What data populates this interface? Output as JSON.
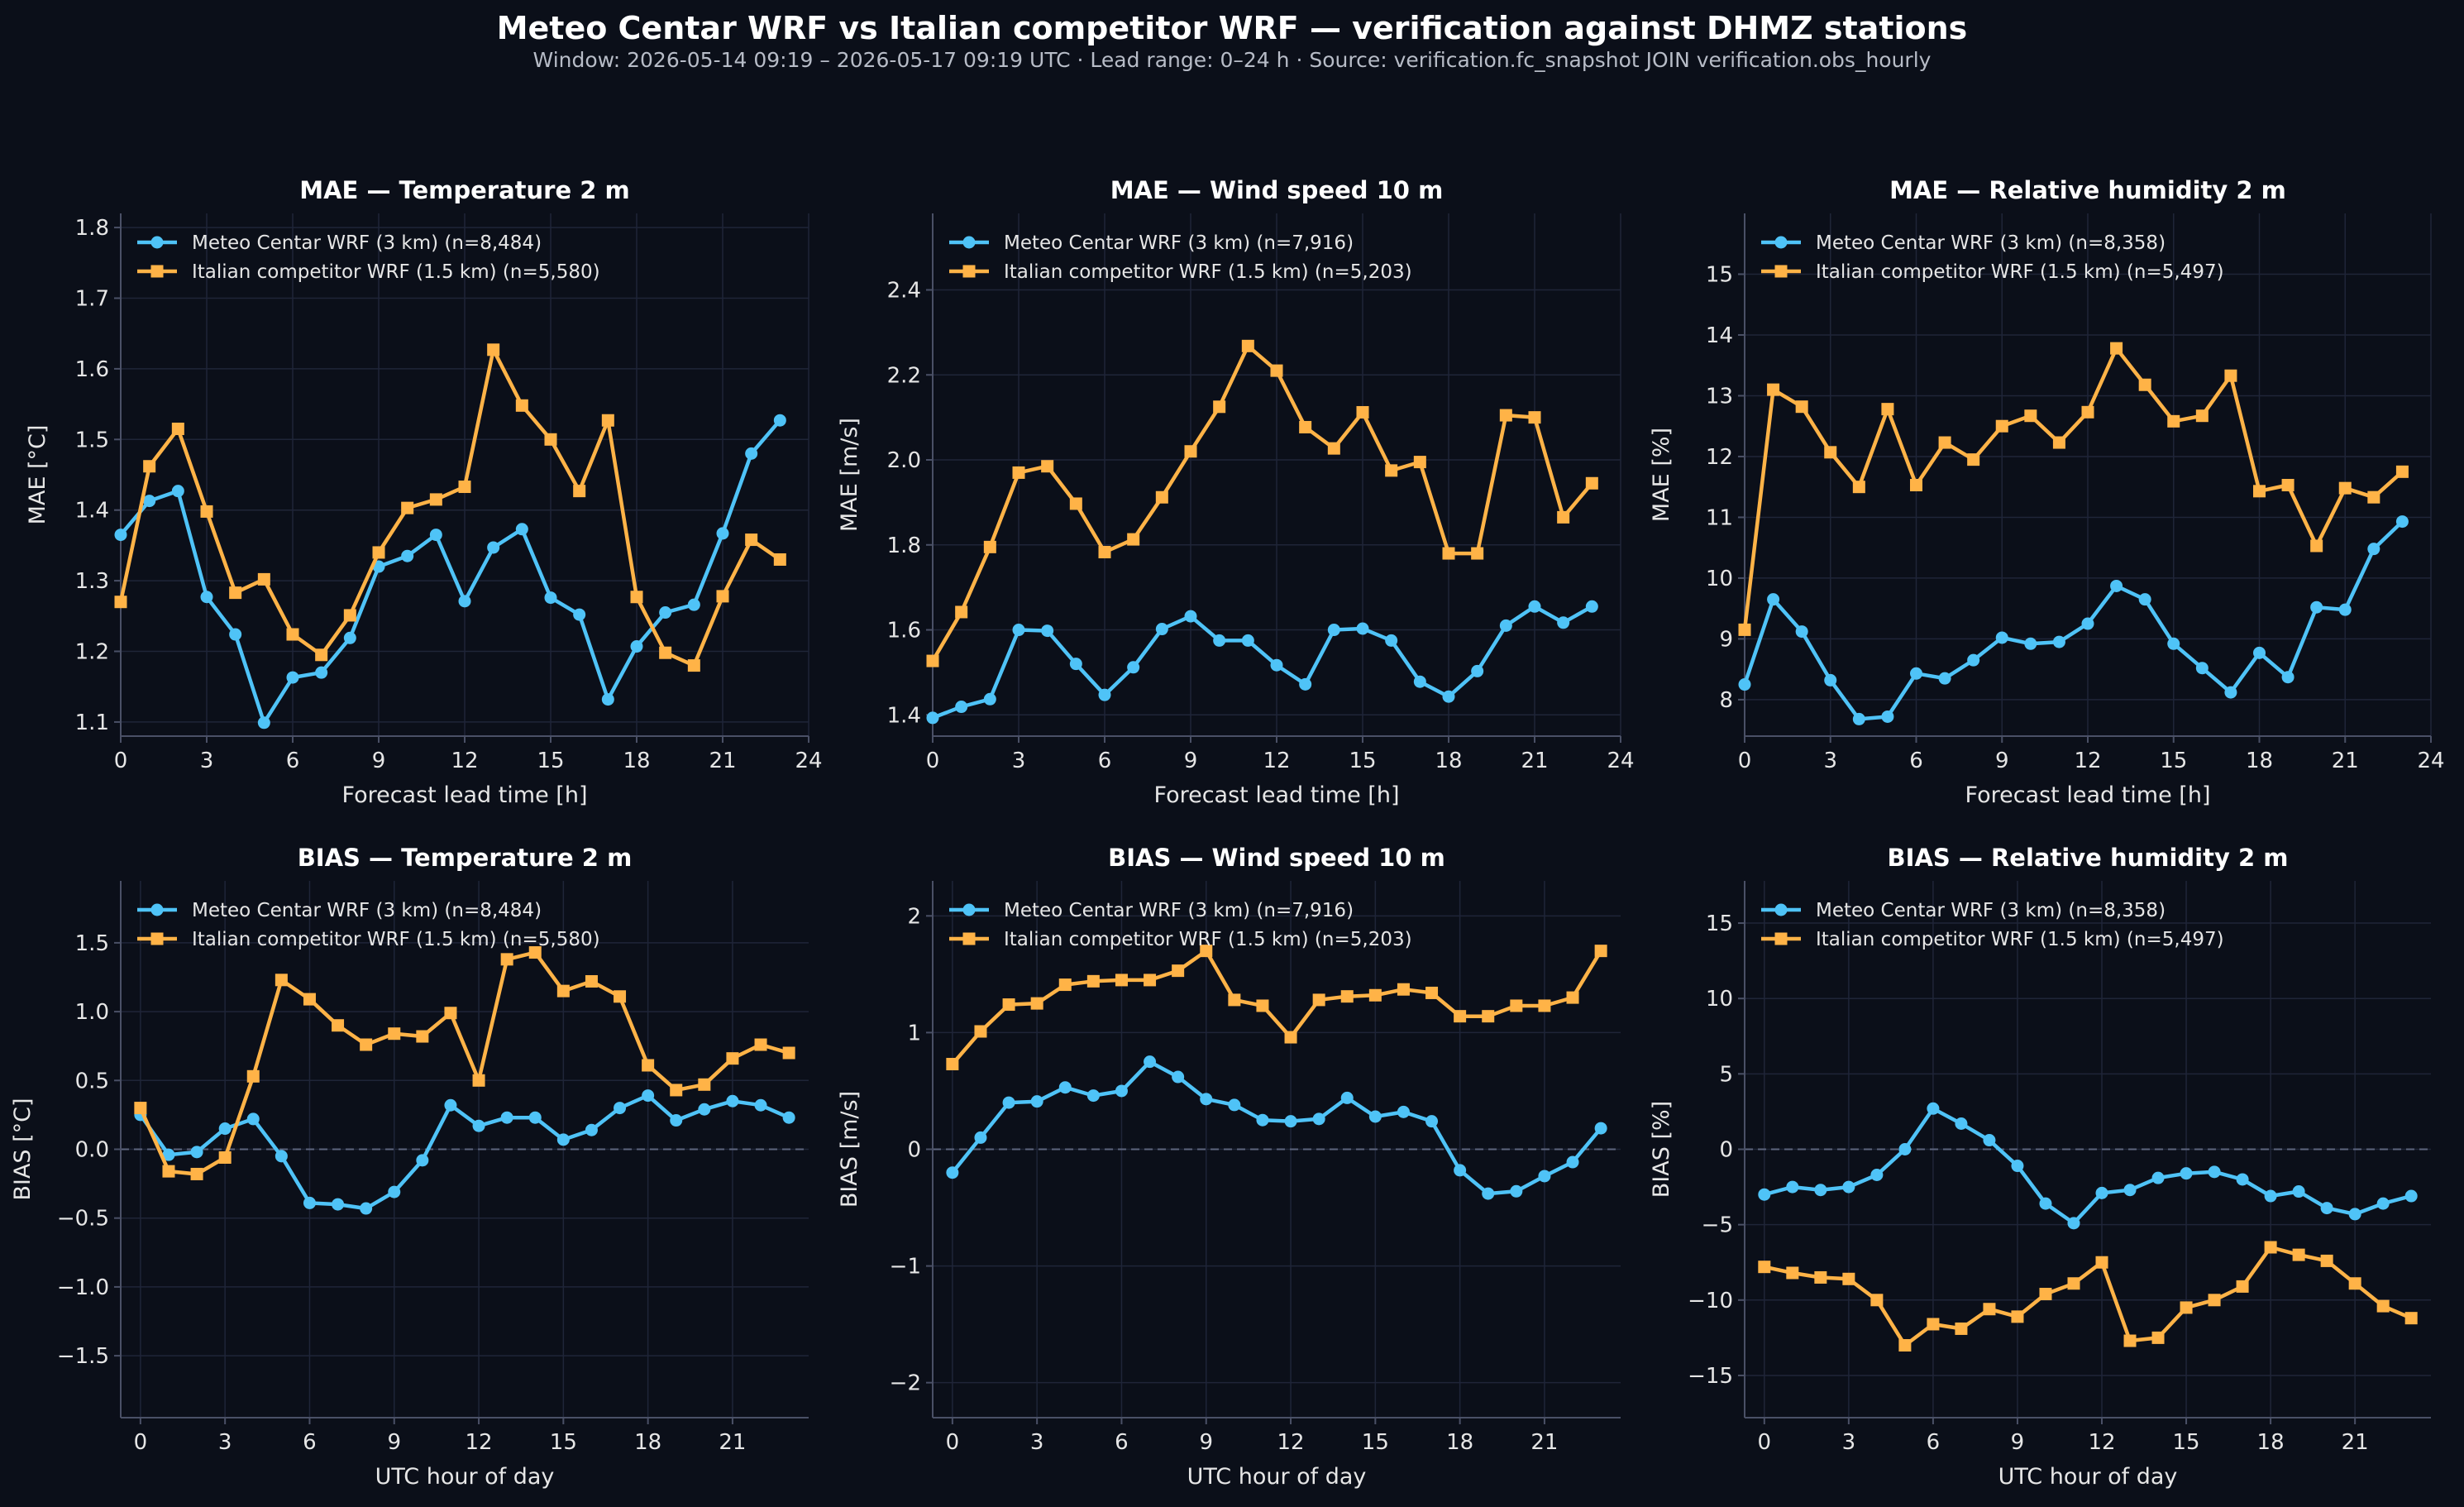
{
  "figure": {
    "title": "Meteo Centar WRF vs Italian competitor WRF — verification against DHMZ stations",
    "subtitle": "Window: 2026-05-14 09:19 – 2026-05-17 09:19 UTC  ·  Lead range: 0–24 h  ·  Source: verification.fc_snapshot JOIN verification.obs_hourly"
  },
  "colors": {
    "background": "#0b0f19",
    "grid": "#1f2538",
    "axis": "#4a5066",
    "meteo": "#4fc3f7",
    "italian": "#ffb347"
  },
  "chart_data": [
    {
      "type": "line",
      "title": "MAE — Temperature 2 m",
      "xlabel": "Forecast lead time [h]",
      "ylabel": "MAE [°C]",
      "xlim": [
        0,
        24
      ],
      "ylim": [
        1.08,
        1.82
      ],
      "xticks": [
        0,
        3,
        6,
        9,
        12,
        15,
        18,
        21,
        24
      ],
      "xtick_labels": [
        "0",
        "3",
        "6",
        "9",
        "12",
        "15",
        "18",
        "21",
        "24"
      ],
      "yticks": [
        1.1,
        1.2,
        1.3,
        1.4,
        1.5,
        1.6,
        1.7,
        1.8
      ],
      "ytick_labels": [
        "1.1",
        "1.2",
        "1.3",
        "1.4",
        "1.5",
        "1.6",
        "1.7",
        "1.8"
      ],
      "grid": true,
      "legend": "upper-left",
      "x": [
        0,
        1,
        2,
        3,
        4,
        5,
        6,
        7,
        8,
        9,
        10,
        11,
        12,
        13,
        14,
        15,
        16,
        17,
        18,
        19,
        20,
        21,
        22,
        23
      ],
      "series": [
        {
          "name": "Meteo Centar WRF (3 km) (n=8,484)",
          "marker": "circle",
          "color": "#4fc3f7",
          "values": [
            1.365,
            1.413,
            1.427,
            1.277,
            1.224,
            1.099,
            1.163,
            1.17,
            1.219,
            1.32,
            1.335,
            1.365,
            1.271,
            1.347,
            1.373,
            1.276,
            1.252,
            1.132,
            1.207,
            1.255,
            1.266,
            1.367,
            1.48,
            1.527
          ]
        },
        {
          "name": "Italian competitor WRF (1.5 km) (n=5,580)",
          "marker": "square",
          "color": "#ffb347",
          "values": [
            1.27,
            1.462,
            1.515,
            1.398,
            1.283,
            1.302,
            1.224,
            1.195,
            1.251,
            1.34,
            1.403,
            1.415,
            1.433,
            1.627,
            1.548,
            1.5,
            1.427,
            1.527,
            1.277,
            1.198,
            1.18,
            1.278,
            1.358,
            1.33
          ]
        }
      ]
    },
    {
      "type": "line",
      "title": "MAE — Wind speed 10 m",
      "xlabel": "Forecast lead time [h]",
      "ylabel": "MAE [m/s]",
      "xlim": [
        0,
        24
      ],
      "ylim": [
        1.35,
        2.58
      ],
      "xticks": [
        0,
        3,
        6,
        9,
        12,
        15,
        18,
        21,
        24
      ],
      "xtick_labels": [
        "0",
        "3",
        "6",
        "9",
        "12",
        "15",
        "18",
        "21",
        "24"
      ],
      "yticks": [
        1.4,
        1.6,
        1.8,
        2.0,
        2.2,
        2.4
      ],
      "ytick_labels": [
        "1.4",
        "1.6",
        "1.8",
        "2.0",
        "2.2",
        "2.4"
      ],
      "grid": true,
      "legend": "upper-left",
      "x": [
        0,
        1,
        2,
        3,
        4,
        5,
        6,
        7,
        8,
        9,
        10,
        11,
        12,
        13,
        14,
        15,
        16,
        17,
        18,
        19,
        20,
        21,
        22,
        23
      ],
      "series": [
        {
          "name": "Meteo Centar WRF (3 km) (n=7,916)",
          "marker": "circle",
          "color": "#4fc3f7",
          "values": [
            1.393,
            1.419,
            1.437,
            1.6,
            1.598,
            1.52,
            1.447,
            1.512,
            1.602,
            1.632,
            1.575,
            1.575,
            1.517,
            1.472,
            1.6,
            1.603,
            1.575,
            1.478,
            1.443,
            1.503,
            1.61,
            1.655,
            1.617,
            1.655
          ]
        },
        {
          "name": "Italian competitor WRF (1.5 km) (n=5,203)",
          "marker": "square",
          "color": "#ffb347",
          "values": [
            1.527,
            1.642,
            1.795,
            1.97,
            1.985,
            1.897,
            1.783,
            1.813,
            1.912,
            2.02,
            2.125,
            2.268,
            2.21,
            2.077,
            2.027,
            2.112,
            1.975,
            1.995,
            1.78,
            1.78,
            2.105,
            2.1,
            1.865,
            1.945
          ]
        }
      ]
    },
    {
      "type": "line",
      "title": "MAE — Relative humidity 2 m",
      "xlabel": "Forecast lead time [h]",
      "ylabel": "MAE [%]",
      "xlim": [
        0,
        24
      ],
      "ylim": [
        7.4,
        16.0
      ],
      "xticks": [
        0,
        3,
        6,
        9,
        12,
        15,
        18,
        21,
        24
      ],
      "xtick_labels": [
        "0",
        "3",
        "6",
        "9",
        "12",
        "15",
        "18",
        "21",
        "24"
      ],
      "yticks": [
        8,
        9,
        10,
        11,
        12,
        13,
        14,
        15
      ],
      "ytick_labels": [
        "8",
        "9",
        "10",
        "11",
        "12",
        "13",
        "14",
        "15"
      ],
      "grid": true,
      "legend": "upper-left",
      "x": [
        0,
        1,
        2,
        3,
        4,
        5,
        6,
        7,
        8,
        9,
        10,
        11,
        12,
        13,
        14,
        15,
        16,
        17,
        18,
        19,
        20,
        21,
        22,
        23
      ],
      "series": [
        {
          "name": "Meteo Centar WRF (3 km) (n=8,358)",
          "marker": "circle",
          "color": "#4fc3f7",
          "values": [
            8.25,
            9.65,
            9.12,
            8.32,
            7.68,
            7.72,
            8.43,
            8.35,
            8.65,
            9.02,
            8.92,
            8.95,
            9.25,
            9.87,
            9.65,
            8.92,
            8.52,
            8.12,
            8.77,
            8.37,
            9.52,
            9.48,
            10.48,
            10.93
          ]
        },
        {
          "name": "Italian competitor WRF (1.5 km) (n=5,497)",
          "marker": "square",
          "color": "#ffb347",
          "values": [
            9.15,
            13.1,
            12.82,
            12.07,
            11.5,
            12.78,
            11.53,
            12.23,
            11.95,
            12.5,
            12.67,
            12.23,
            12.73,
            13.78,
            13.18,
            12.58,
            12.67,
            13.33,
            11.43,
            11.53,
            10.53,
            11.48,
            11.33,
            11.75
          ]
        }
      ]
    },
    {
      "type": "line",
      "title": "BIAS — Temperature 2 m",
      "xlabel": "UTC hour of day",
      "ylabel": "BIAS [°C]",
      "xlim": [
        -0.7,
        23.7
      ],
      "ylim": [
        -1.95,
        1.95
      ],
      "xticks": [
        0,
        3,
        6,
        9,
        12,
        15,
        18,
        21
      ],
      "xtick_labels": [
        "0",
        "3",
        "6",
        "9",
        "12",
        "15",
        "18",
        "21"
      ],
      "yticks": [
        -1.5,
        -1.0,
        -0.5,
        0.0,
        0.5,
        1.0,
        1.5
      ],
      "ytick_labels": [
        "−1.5",
        "−1.0",
        "−0.5",
        "0.0",
        "0.5",
        "1.0",
        "1.5"
      ],
      "grid": true,
      "legend": "upper-left",
      "zero_line": true,
      "x": [
        0,
        1,
        2,
        3,
        4,
        5,
        6,
        7,
        8,
        9,
        10,
        11,
        12,
        13,
        14,
        15,
        16,
        17,
        18,
        19,
        20,
        21,
        22,
        23
      ],
      "series": [
        {
          "name": "Meteo Centar WRF (3 km) (n=8,484)",
          "marker": "circle",
          "color": "#4fc3f7",
          "values": [
            0.25,
            -0.04,
            -0.02,
            0.15,
            0.22,
            -0.05,
            -0.39,
            -0.4,
            -0.43,
            -0.31,
            -0.08,
            0.32,
            0.17,
            0.23,
            0.23,
            0.07,
            0.14,
            0.3,
            0.39,
            0.21,
            0.29,
            0.35,
            0.32,
            0.23
          ]
        },
        {
          "name": "Italian competitor WRF (1.5 km) (n=5,580)",
          "marker": "square",
          "color": "#ffb347",
          "values": [
            0.3,
            -0.16,
            -0.18,
            -0.06,
            0.53,
            1.23,
            1.09,
            0.9,
            0.76,
            0.84,
            0.82,
            0.99,
            0.5,
            1.38,
            1.43,
            1.15,
            1.22,
            1.11,
            0.61,
            0.43,
            0.47,
            0.66,
            0.76,
            0.7
          ]
        }
      ]
    },
    {
      "type": "line",
      "title": "BIAS — Wind speed 10 m",
      "xlabel": "UTC hour of day",
      "ylabel": "BIAS [m/s]",
      "xlim": [
        -0.7,
        23.7
      ],
      "ylim": [
        -2.3,
        2.3
      ],
      "xticks": [
        0,
        3,
        6,
        9,
        12,
        15,
        18,
        21
      ],
      "xtick_labels": [
        "0",
        "3",
        "6",
        "9",
        "12",
        "15",
        "18",
        "21"
      ],
      "yticks": [
        -2,
        -1,
        0,
        1,
        2
      ],
      "ytick_labels": [
        "−2",
        "−1",
        "0",
        "1",
        "2"
      ],
      "grid": true,
      "legend": "upper-left",
      "zero_line": true,
      "x": [
        0,
        1,
        2,
        3,
        4,
        5,
        6,
        7,
        8,
        9,
        10,
        11,
        12,
        13,
        14,
        15,
        16,
        17,
        18,
        19,
        20,
        21,
        22,
        23
      ],
      "series": [
        {
          "name": "Meteo Centar WRF (3 km) (n=7,916)",
          "marker": "circle",
          "color": "#4fc3f7",
          "values": [
            -0.2,
            0.1,
            0.4,
            0.41,
            0.53,
            0.46,
            0.5,
            0.75,
            0.62,
            0.43,
            0.38,
            0.25,
            0.24,
            0.26,
            0.44,
            0.28,
            0.32,
            0.24,
            -0.18,
            -0.38,
            -0.36,
            -0.23,
            -0.11,
            0.18
          ]
        },
        {
          "name": "Italian competitor WRF (1.5 km) (n=5,203)",
          "marker": "square",
          "color": "#ffb347",
          "values": [
            0.73,
            1.01,
            1.24,
            1.25,
            1.41,
            1.44,
            1.45,
            1.45,
            1.53,
            1.7,
            1.28,
            1.23,
            0.96,
            1.28,
            1.31,
            1.32,
            1.37,
            1.34,
            1.14,
            1.14,
            1.23,
            1.23,
            1.3,
            1.7
          ]
        }
      ]
    },
    {
      "type": "line",
      "title": "BIAS — Relative humidity 2 m",
      "xlabel": "UTC hour of day",
      "ylabel": "BIAS [%]",
      "xlim": [
        -0.7,
        23.7
      ],
      "ylim": [
        -17.8,
        17.8
      ],
      "xticks": [
        0,
        3,
        6,
        9,
        12,
        15,
        18,
        21
      ],
      "xtick_labels": [
        "0",
        "3",
        "6",
        "9",
        "12",
        "15",
        "18",
        "21"
      ],
      "yticks": [
        -15,
        -10,
        -5,
        0,
        5,
        10,
        15
      ],
      "ytick_labels": [
        "−15",
        "−10",
        "−5",
        "0",
        "5",
        "10",
        "15"
      ],
      "grid": true,
      "legend": "upper-left",
      "zero_line": true,
      "x": [
        0,
        1,
        2,
        3,
        4,
        5,
        6,
        7,
        8,
        9,
        10,
        11,
        12,
        13,
        14,
        15,
        16,
        17,
        18,
        19,
        20,
        21,
        22,
        23
      ],
      "series": [
        {
          "name": "Meteo Centar WRF (3 km) (n=8,358)",
          "marker": "circle",
          "color": "#4fc3f7",
          "values": [
            -3.0,
            -2.5,
            -2.7,
            -2.5,
            -1.7,
            0.0,
            2.7,
            1.7,
            0.6,
            -1.1,
            -3.6,
            -4.9,
            -2.9,
            -2.7,
            -1.9,
            -1.6,
            -1.5,
            -2.0,
            -3.1,
            -2.8,
            -3.9,
            -4.3,
            -3.6,
            -3.1
          ]
        },
        {
          "name": "Italian competitor WRF (1.5 km) (n=5,497)",
          "marker": "square",
          "color": "#ffb347",
          "values": [
            -7.8,
            -8.2,
            -8.5,
            -8.6,
            -10.0,
            -13.0,
            -11.6,
            -11.9,
            -10.6,
            -11.1,
            -9.6,
            -8.9,
            -7.5,
            -12.7,
            -12.5,
            -10.5,
            -10.0,
            -9.1,
            -6.5,
            -7.0,
            -7.4,
            -8.9,
            -10.4,
            -11.2
          ]
        }
      ]
    }
  ]
}
